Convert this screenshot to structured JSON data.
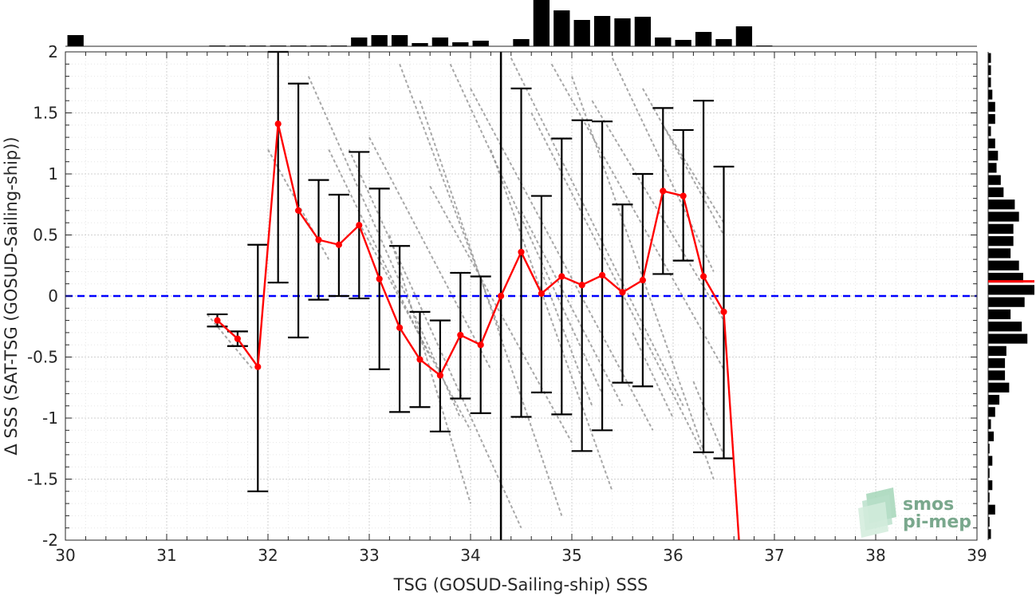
{
  "chart_data": {
    "type": "scatter",
    "xlabel": "TSG (GOSUD-Sailing-ship) SSS",
    "ylabel": "Δ SSS (SAT-TSG (GOSUD-Sailing-ship))",
    "xlim": [
      30,
      39
    ],
    "ylim": [
      -2,
      2
    ],
    "xticks": [
      "30",
      "31",
      "32",
      "33",
      "34",
      "35",
      "36",
      "37",
      "38",
      "39"
    ],
    "yticks": [
      "-2",
      "-1.5",
      "-1",
      "-0.5",
      "0",
      "0.5",
      "1",
      "1.5",
      "2"
    ],
    "grid": true,
    "zero_line": 0,
    "median_x": 34.3,
    "binned_mean": {
      "x": [
        31.5,
        31.7,
        31.9,
        32.1,
        32.3,
        32.5,
        32.7,
        32.9,
        33.1,
        33.3,
        33.5,
        33.7,
        33.9,
        34.1,
        34.3,
        34.5,
        34.7,
        34.9,
        35.1,
        35.3,
        35.5,
        35.7,
        35.9,
        36.1,
        36.3,
        36.5,
        36.65
      ],
      "y": [
        -0.2,
        -0.35,
        -0.58,
        1.41,
        0.7,
        0.46,
        0.42,
        0.58,
        0.14,
        -0.26,
        -0.52,
        -0.65,
        -0.32,
        -0.4,
        0.0,
        0.36,
        0.02,
        0.16,
        0.09,
        0.17,
        0.03,
        0.13,
        0.86,
        0.82,
        0.16,
        -0.13,
        -2.0
      ],
      "marker_count": 26
    },
    "error_bars": [
      {
        "x": 31.5,
        "low": -0.25,
        "high": -0.15
      },
      {
        "x": 31.7,
        "low": -0.41,
        "high": -0.29
      },
      {
        "x": 31.9,
        "low": -1.6,
        "high": 0.42
      },
      {
        "x": 32.1,
        "low": 0.11,
        "high": 2.0
      },
      {
        "x": 32.3,
        "low": -0.34,
        "high": 1.74
      },
      {
        "x": 32.5,
        "low": -0.03,
        "high": 0.95
      },
      {
        "x": 32.7,
        "low": 0.0,
        "high": 0.83
      },
      {
        "x": 32.9,
        "low": -0.02,
        "high": 1.18
      },
      {
        "x": 33.1,
        "low": -0.6,
        "high": 0.88
      },
      {
        "x": 33.3,
        "low": -0.95,
        "high": 0.41
      },
      {
        "x": 33.5,
        "low": -0.91,
        "high": -0.13
      },
      {
        "x": 33.7,
        "low": -1.11,
        "high": -0.2
      },
      {
        "x": 33.9,
        "low": -0.84,
        "high": 0.19
      },
      {
        "x": 34.1,
        "low": -0.96,
        "high": 0.16
      },
      {
        "x": 34.5,
        "low": -0.99,
        "high": 1.7
      },
      {
        "x": 34.7,
        "low": -0.79,
        "high": 0.82
      },
      {
        "x": 34.9,
        "low": -0.97,
        "high": 1.29
      },
      {
        "x": 35.1,
        "low": -1.27,
        "high": 1.44
      },
      {
        "x": 35.3,
        "low": -1.1,
        "high": 1.43
      },
      {
        "x": 35.5,
        "low": -0.71,
        "high": 0.75
      },
      {
        "x": 35.7,
        "low": -0.74,
        "high": 1.0
      },
      {
        "x": 35.9,
        "low": 0.18,
        "high": 1.54
      },
      {
        "x": 36.1,
        "low": 0.29,
        "high": 1.36
      },
      {
        "x": 36.3,
        "low": -1.28,
        "high": 1.6
      },
      {
        "x": 36.5,
        "low": -1.33,
        "high": 1.06
      }
    ],
    "scatter_segments": [
      {
        "x1": 31.4,
        "y1": -0.15,
        "x2": 31.85,
        "y2": -0.6
      },
      {
        "x1": 32.0,
        "y1": 1.2,
        "x2": 32.6,
        "y2": 0.3
      },
      {
        "x1": 32.4,
        "y1": 1.8,
        "x2": 33.9,
        "y2": -1.0
      },
      {
        "x1": 32.6,
        "y1": 1.2,
        "x2": 33.6,
        "y2": -0.5
      },
      {
        "x1": 32.8,
        "y1": 1.2,
        "x2": 34.5,
        "y2": -1.9
      },
      {
        "x1": 32.9,
        "y1": 0.6,
        "x2": 34.0,
        "y2": -1.1
      },
      {
        "x1": 33.0,
        "y1": 1.3,
        "x2": 34.2,
        "y2": -0.6
      },
      {
        "x1": 33.2,
        "y1": 0.5,
        "x2": 34.0,
        "y2": -1.7
      },
      {
        "x1": 33.3,
        "y1": 1.9,
        "x2": 34.3,
        "y2": -0.3
      },
      {
        "x1": 33.5,
        "y1": 1.6,
        "x2": 34.9,
        "y2": -1.8
      },
      {
        "x1": 33.6,
        "y1": 0.9,
        "x2": 35.0,
        "y2": -1.2
      },
      {
        "x1": 33.8,
        "y1": 1.9,
        "x2": 35.3,
        "y2": -0.8
      },
      {
        "x1": 34.0,
        "y1": 1.7,
        "x2": 35.8,
        "y2": -1.1
      },
      {
        "x1": 34.2,
        "y1": 1.2,
        "x2": 35.4,
        "y2": -1.6
      },
      {
        "x1": 34.4,
        "y1": 1.95,
        "x2": 36.1,
        "y2": -0.9
      },
      {
        "x1": 34.6,
        "y1": 1.5,
        "x2": 36.3,
        "y2": -1.3
      },
      {
        "x1": 34.8,
        "y1": 1.9,
        "x2": 36.5,
        "y2": -0.6
      },
      {
        "x1": 35.0,
        "y1": 1.8,
        "x2": 36.4,
        "y2": -1.5
      },
      {
        "x1": 35.2,
        "y1": 1.6,
        "x2": 36.5,
        "y2": -0.2
      },
      {
        "x1": 35.4,
        "y1": 1.95,
        "x2": 36.4,
        "y2": 0.2
      },
      {
        "x1": 35.7,
        "y1": 1.7,
        "x2": 36.5,
        "y2": 0.5
      },
      {
        "x1": 35.9,
        "y1": 1.4,
        "x2": 36.5,
        "y2": 0.6
      },
      {
        "x1": 34.5,
        "y1": 0.7,
        "x2": 35.5,
        "y2": -0.9
      },
      {
        "x1": 34.7,
        "y1": 0.2,
        "x2": 35.2,
        "y2": -0.9
      },
      {
        "x1": 35.6,
        "y1": -0.3,
        "x2": 36.0,
        "y2": -1.0
      },
      {
        "x1": 36.2,
        "y1": -0.7,
        "x2": 36.5,
        "y2": -1.3
      }
    ],
    "top_histogram": {
      "x": [
        30.1,
        31.5,
        31.7,
        31.9,
        32.1,
        32.3,
        32.5,
        32.7,
        32.9,
        33.1,
        33.3,
        33.5,
        33.7,
        33.9,
        34.1,
        34.5,
        34.7,
        34.9,
        35.1,
        35.3,
        35.5,
        35.7,
        35.9,
        36.1,
        36.3,
        36.5,
        36.7,
        36.9
      ],
      "counts": [
        14,
        1,
        1,
        1,
        1,
        1,
        1,
        1,
        11,
        14,
        14,
        4,
        11,
        5,
        7,
        9,
        58,
        45,
        33,
        38,
        35,
        37,
        11,
        8,
        18,
        9,
        25,
        1
      ]
    },
    "right_histogram": {
      "y": [
        1.95,
        1.85,
        1.75,
        1.65,
        1.55,
        1.45,
        1.35,
        1.25,
        1.15,
        1.05,
        0.95,
        0.85,
        0.75,
        0.65,
        0.55,
        0.45,
        0.35,
        0.25,
        0.15,
        0.05,
        -0.05,
        -0.15,
        -0.25,
        -0.35,
        -0.45,
        -0.55,
        -0.65,
        -0.75,
        -0.85,
        -0.95,
        -1.05,
        -1.15,
        -1.25,
        -1.35,
        -1.45,
        -1.55,
        -1.65,
        -1.75,
        -1.85,
        -1.95
      ],
      "counts": [
        2,
        2,
        2,
        3,
        5,
        5,
        2,
        5,
        7,
        6,
        9,
        11,
        19,
        22,
        18,
        18,
        16,
        22,
        25,
        33,
        26,
        16,
        24,
        28,
        13,
        12,
        12,
        15,
        8,
        5,
        2,
        4,
        1,
        3,
        1,
        3,
        1,
        5,
        1,
        2
      ],
      "median": 0.12
    }
  },
  "logo": {
    "line1": "smos",
    "line2": "pi-mep"
  },
  "colors": {
    "mean": "#ff0000",
    "zero_line": "#0000ff",
    "scatter": "#8c8c8c",
    "bars": "#000000",
    "logo": "#7aa88d"
  }
}
